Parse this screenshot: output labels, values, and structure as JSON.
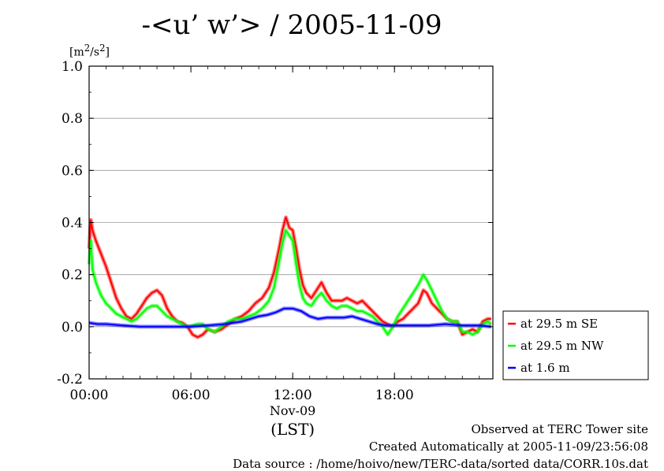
{
  "title": "-<u’ w’> / 2005-11-09",
  "unit_label": "[m²/s²]",
  "footer": {
    "observed": "Observed at TERC Tower site",
    "created": "Created Automatically at 2005-11-09/23:56:08",
    "source": "Data source : /home/hoivo/new/TERC-data/sorted  data/CORR.10s.dat"
  },
  "chart_data": {
    "type": "line",
    "title": "-<u’ w’> / 2005-11-09",
    "ylabel": "[m²/s²]",
    "xlabel": "(LST)",
    "x_date_label": "Nov-09",
    "xlim": [
      0,
      23.8
    ],
    "ylim": [
      -0.2,
      1.0
    ],
    "xticks": [
      0,
      6,
      12,
      18
    ],
    "xtick_labels": [
      "00:00",
      "06:00",
      "12:00",
      "18:00"
    ],
    "yticks": [
      -0.2,
      0.0,
      0.2,
      0.4,
      0.6,
      0.8,
      1.0
    ],
    "ytick_labels": [
      "-0.2",
      "0.0",
      "0.2",
      "0.4",
      "0.6",
      "0.8",
      "1.0"
    ],
    "grid": true,
    "legend_position": "right",
    "series": [
      {
        "name": "at 29.5 m SE",
        "color": "#ff0000",
        "x": [
          0,
          0.1,
          0.2,
          0.4,
          0.7,
          1.0,
          1.3,
          1.6,
          1.9,
          2.2,
          2.5,
          2.8,
          3.1,
          3.4,
          3.7,
          4.0,
          4.3,
          4.6,
          4.9,
          5.2,
          5.5,
          5.8,
          6.1,
          6.4,
          6.7,
          7.0,
          7.4,
          7.8,
          8.2,
          8.6,
          9.0,
          9.4,
          9.8,
          10.2,
          10.6,
          10.9,
          11.2,
          11.4,
          11.6,
          11.8,
          12.0,
          12.2,
          12.4,
          12.6,
          12.8,
          13.1,
          13.4,
          13.7,
          14.0,
          14.3,
          14.6,
          14.9,
          15.2,
          15.5,
          15.8,
          16.1,
          16.4,
          16.7,
          17.0,
          17.3,
          17.6,
          17.9,
          18.2,
          18.5,
          18.8,
          19.1,
          19.4,
          19.7,
          19.9,
          20.2,
          20.5,
          20.8,
          21.1,
          21.4,
          21.7,
          22.0,
          22.3,
          22.6,
          22.9,
          23.2,
          23.5,
          23.7
        ],
        "values": [
          0.3,
          0.41,
          0.37,
          0.33,
          0.28,
          0.23,
          0.17,
          0.11,
          0.07,
          0.04,
          0.03,
          0.05,
          0.08,
          0.11,
          0.13,
          0.14,
          0.12,
          0.07,
          0.04,
          0.02,
          0.015,
          0.0,
          -0.03,
          -0.04,
          -0.03,
          -0.01,
          -0.02,
          -0.01,
          0.01,
          0.03,
          0.04,
          0.06,
          0.09,
          0.11,
          0.15,
          0.21,
          0.3,
          0.37,
          0.42,
          0.38,
          0.37,
          0.3,
          0.22,
          0.16,
          0.13,
          0.11,
          0.14,
          0.17,
          0.13,
          0.1,
          0.1,
          0.1,
          0.11,
          0.1,
          0.09,
          0.1,
          0.08,
          0.06,
          0.04,
          0.02,
          0.01,
          0.0,
          0.02,
          0.03,
          0.05,
          0.07,
          0.09,
          0.14,
          0.13,
          0.09,
          0.07,
          0.05,
          0.03,
          0.02,
          0.02,
          -0.03,
          -0.02,
          -0.01,
          -0.02,
          0.02,
          0.03,
          0.03
        ]
      },
      {
        "name": "at 29.5 m NW",
        "color": "#00ff00",
        "x": [
          0,
          0.1,
          0.2,
          0.4,
          0.7,
          1.0,
          1.3,
          1.6,
          1.9,
          2.2,
          2.5,
          2.8,
          3.1,
          3.4,
          3.7,
          4.0,
          4.3,
          4.6,
          4.9,
          5.2,
          5.5,
          5.8,
          6.1,
          6.4,
          6.7,
          7.0,
          7.4,
          7.8,
          8.2,
          8.6,
          9.0,
          9.4,
          9.8,
          10.2,
          10.6,
          10.9,
          11.2,
          11.4,
          11.6,
          11.8,
          12.0,
          12.2,
          12.4,
          12.6,
          12.8,
          13.1,
          13.4,
          13.7,
          14.0,
          14.3,
          14.6,
          14.9,
          15.2,
          15.5,
          15.8,
          16.1,
          16.4,
          16.7,
          17.0,
          17.3,
          17.6,
          17.9,
          18.2,
          18.5,
          18.8,
          19.1,
          19.4,
          19.7,
          19.9,
          20.2,
          20.5,
          20.8,
          21.1,
          21.4,
          21.7,
          22.0,
          22.3,
          22.6,
          22.9,
          23.2,
          23.5,
          23.7
        ],
        "values": [
          0.24,
          0.33,
          0.22,
          0.17,
          0.12,
          0.09,
          0.07,
          0.05,
          0.04,
          0.03,
          0.02,
          0.03,
          0.05,
          0.07,
          0.08,
          0.08,
          0.06,
          0.04,
          0.03,
          0.02,
          0.01,
          0.0,
          0.005,
          0.01,
          0.01,
          -0.01,
          -0.02,
          0.0,
          0.02,
          0.03,
          0.03,
          0.04,
          0.05,
          0.07,
          0.1,
          0.15,
          0.25,
          0.32,
          0.37,
          0.35,
          0.33,
          0.24,
          0.16,
          0.11,
          0.09,
          0.08,
          0.11,
          0.13,
          0.1,
          0.08,
          0.07,
          0.08,
          0.08,
          0.07,
          0.06,
          0.06,
          0.05,
          0.04,
          0.02,
          0.0,
          -0.03,
          0.0,
          0.04,
          0.07,
          0.1,
          0.13,
          0.16,
          0.2,
          0.18,
          0.14,
          0.1,
          0.06,
          0.03,
          0.02,
          0.02,
          -0.02,
          -0.02,
          -0.03,
          -0.02,
          0.01,
          0.02,
          0.01
        ]
      },
      {
        "name": "at 1.6 m",
        "color": "#0000ff",
        "x": [
          0,
          0.5,
          1.0,
          2.0,
          3.0,
          4.0,
          5.0,
          6.0,
          7.0,
          8.0,
          9.0,
          9.5,
          10.0,
          10.5,
          11.0,
          11.5,
          12.0,
          12.5,
          13.0,
          13.5,
          14.0,
          14.5,
          15.0,
          15.5,
          16.0,
          16.5,
          17.0,
          17.5,
          18.0,
          19.0,
          20.0,
          21.0,
          22.0,
          23.0,
          23.7
        ],
        "values": [
          0.015,
          0.01,
          0.01,
          0.005,
          0.0,
          0.0,
          0.0,
          0.0,
          0.005,
          0.01,
          0.02,
          0.03,
          0.04,
          0.045,
          0.055,
          0.07,
          0.07,
          0.06,
          0.04,
          0.03,
          0.035,
          0.035,
          0.035,
          0.04,
          0.03,
          0.02,
          0.01,
          0.005,
          0.005,
          0.005,
          0.005,
          0.01,
          0.005,
          0.005,
          0.0
        ]
      }
    ]
  }
}
